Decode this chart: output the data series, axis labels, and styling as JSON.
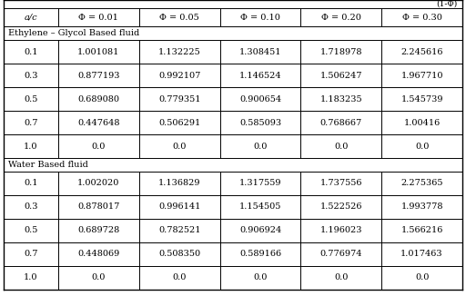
{
  "header_row": [
    "a/c",
    "Φ = 0.01",
    "Φ = 0.05",
    "Φ = 0.10",
    "Φ = 0.20",
    "Φ = 0.30"
  ],
  "section1_label": "Ethylene – Glycol Based fluid",
  "section1_rows": [
    [
      "0.1",
      "1.001081",
      "1.132225",
      "1.308451",
      "1.718978",
      "2.245616"
    ],
    [
      "0.3",
      "0.877193",
      "0.992107",
      "1.146524",
      "1.506247",
      "1.967710"
    ],
    [
      "0.5",
      "0.689080",
      "0.779351",
      "0.900654",
      "1.183235",
      "1.545739"
    ],
    [
      "0.7",
      "0.447648",
      "0.506291",
      "0.585093",
      "0.768667",
      "1.00416"
    ],
    [
      "1.0",
      "0.0",
      "0.0",
      "0.0",
      "0.0",
      "0.0"
    ]
  ],
  "section2_label": "Water Based fluid",
  "section2_rows": [
    [
      "0.1",
      "1.002020",
      "1.136829",
      "1.317559",
      "1.737556",
      "2.275365"
    ],
    [
      "0.3",
      "0.878017",
      "0.996141",
      "1.154505",
      "1.522526",
      "1.993778"
    ],
    [
      "0.5",
      "0.689728",
      "0.782521",
      "0.906924",
      "1.196023",
      "1.566216"
    ],
    [
      "0.7",
      "0.448069",
      "0.508350",
      "0.589166",
      "0.776974",
      "1.017463"
    ],
    [
      "1.0",
      "0.0",
      "0.0",
      "0.0",
      "0.0",
      "0.0"
    ]
  ],
  "top_label": "(1-Φ)",
  "bg_color": "#ffffff",
  "text_color": "#000000",
  "border_color": "#000000",
  "font_size": 7.0,
  "header_font_size": 7.0,
  "section_font_size": 7.0
}
